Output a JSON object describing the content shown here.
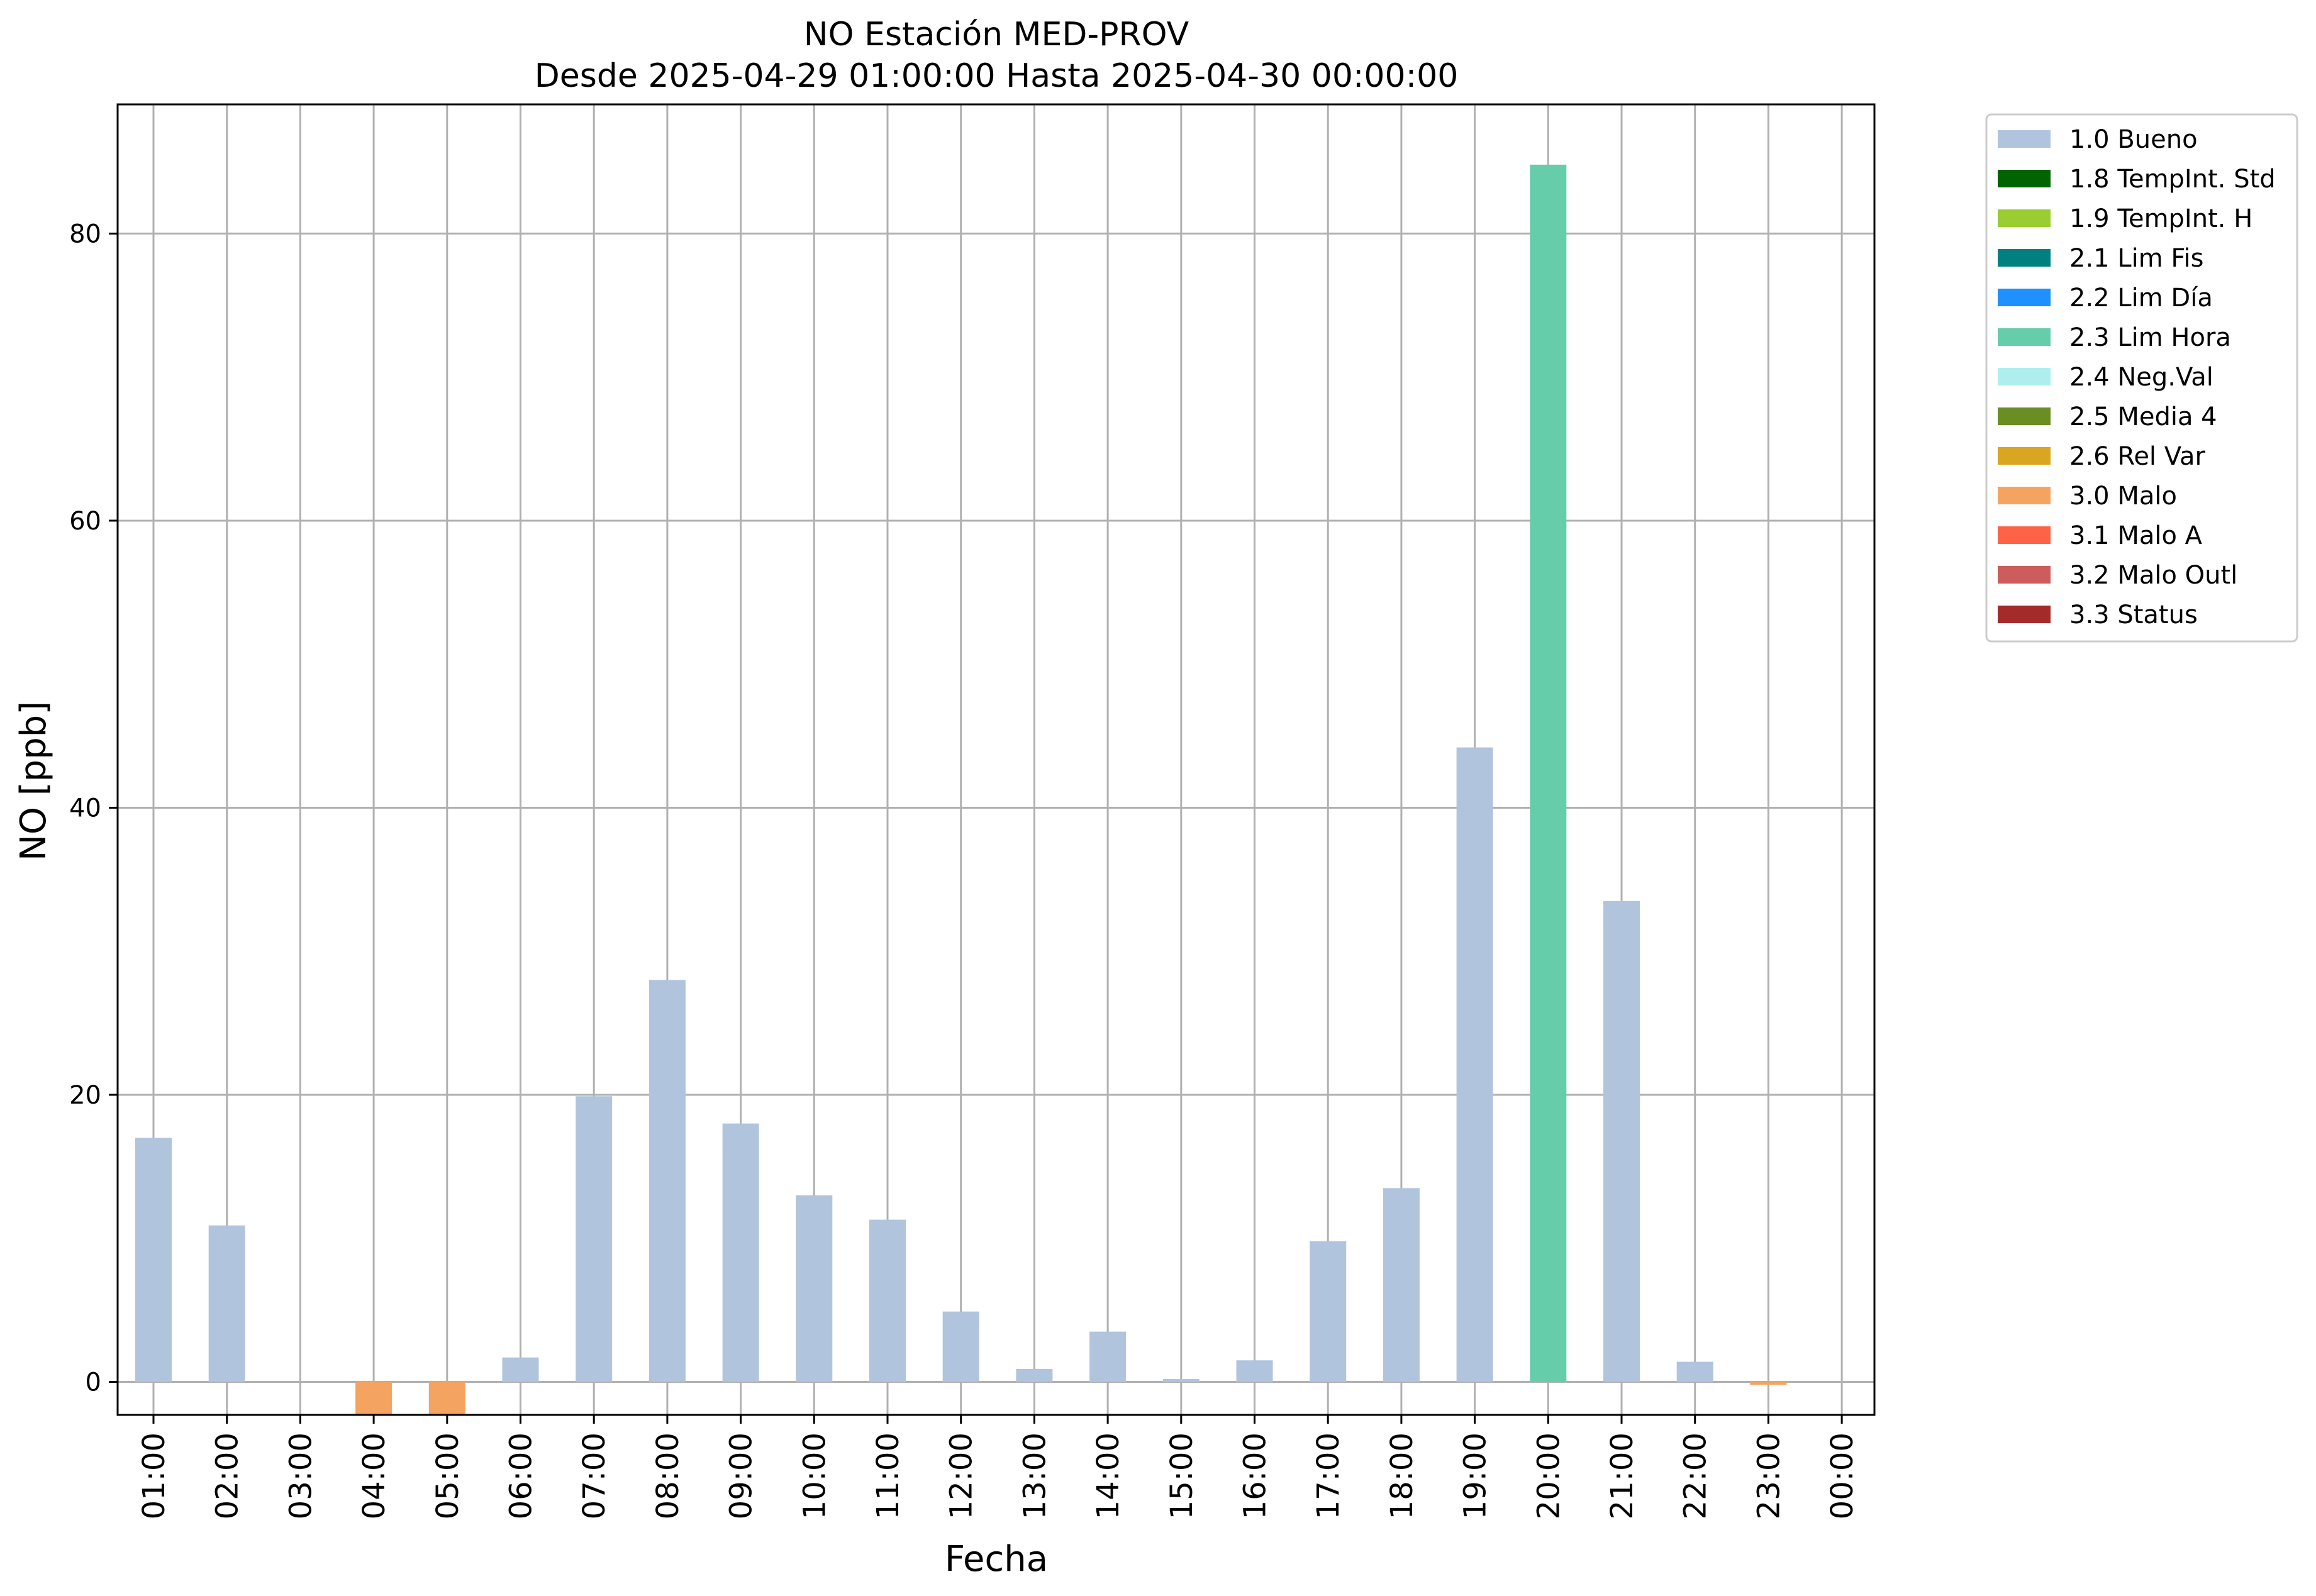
{
  "chart_data": {
    "type": "bar",
    "title": "NO Estación MED-PROV",
    "subtitle": "Desde 2025-04-29 01:00:00 Hasta 2025-04-30 00:00:00",
    "xlabel": "Fecha",
    "ylabel": "NO [ppb]",
    "ylim": [
      -2.3,
      89
    ],
    "yticks": [
      0,
      20,
      40,
      60,
      80
    ],
    "grid": true,
    "legend_position": "outside-top-right",
    "categories": [
      "01:00",
      "02:00",
      "03:00",
      "04:00",
      "05:00",
      "06:00",
      "07:00",
      "08:00",
      "09:00",
      "10:00",
      "11:00",
      "12:00",
      "13:00",
      "14:00",
      "15:00",
      "16:00",
      "17:00",
      "18:00",
      "19:00",
      "20:00",
      "21:00",
      "22:00",
      "23:00",
      "00:00"
    ],
    "values": [
      17.0,
      10.9,
      null,
      -2.3,
      -2.3,
      1.7,
      19.9,
      28.0,
      18.0,
      13.0,
      11.3,
      4.9,
      0.9,
      3.5,
      0.2,
      1.5,
      9.8,
      13.5,
      44.2,
      84.8,
      33.5,
      1.4,
      -0.2,
      null
    ],
    "flags": [
      "1.0 Bueno",
      "1.0 Bueno",
      null,
      "3.0 Malo",
      "3.0 Malo",
      "1.0 Bueno",
      "1.0 Bueno",
      "1.0 Bueno",
      "1.0 Bueno",
      "1.0 Bueno",
      "1.0 Bueno",
      "1.0 Bueno",
      "1.0 Bueno",
      "1.0 Bueno",
      "1.0 Bueno",
      "1.0 Bueno",
      "1.0 Bueno",
      "1.0 Bueno",
      "1.0 Bueno",
      "2.3 Lim Hora",
      "1.0 Bueno",
      "1.0 Bueno",
      "3.0 Malo",
      null
    ],
    "legend": [
      {
        "label": "1.0 Bueno",
        "color": "#b0c4de"
      },
      {
        "label": "1.8 TempInt. Std",
        "color": "#006400"
      },
      {
        "label": "1.9 TempInt. H",
        "color": "#9acd32"
      },
      {
        "label": "2.1 Lim Fis",
        "color": "#008080"
      },
      {
        "label": "2.2 Lim Día",
        "color": "#1e90ff"
      },
      {
        "label": "2.3 Lim Hora",
        "color": "#66cdaa"
      },
      {
        "label": "2.4 Neg.Val",
        "color": "#afeeee"
      },
      {
        "label": "2.5 Media 4",
        "color": "#6b8e23"
      },
      {
        "label": "2.6 Rel Var",
        "color": "#daa520"
      },
      {
        "label": "3.0 Malo",
        "color": "#f4a460"
      },
      {
        "label": "3.1 Malo A",
        "color": "#ff6347"
      },
      {
        "label": "3.2 Malo Outl",
        "color": "#cd5c5c"
      },
      {
        "label": "3.3 Status",
        "color": "#a52a2a"
      }
    ]
  }
}
